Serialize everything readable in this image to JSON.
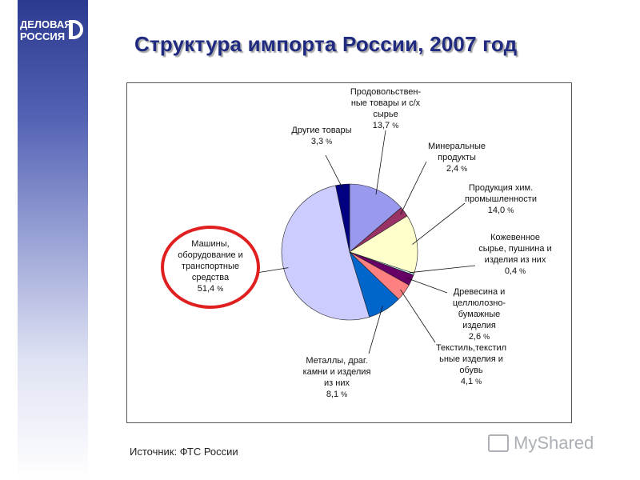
{
  "logo": {
    "line1": "ДЕЛОВАЯ",
    "line2": "РОССИЯ"
  },
  "title": "Структура импорта России, 2007 год",
  "source": "Источник: ФТС России",
  "watermark": "MyShared",
  "colors": {
    "brand": "#1f2a80",
    "highlight": "#e02020"
  },
  "chart_data": {
    "type": "pie",
    "title": "",
    "unit": "%",
    "slices": [
      {
        "label": [
          "Продовольствен-",
          "ные товары и с/х",
          "сырье"
        ],
        "value": 13.7,
        "value_text": "13,7",
        "color": "#9999ee"
      },
      {
        "label": [
          "Минеральные",
          "продукты"
        ],
        "value": 2.4,
        "value_text": "2,4",
        "color": "#993366"
      },
      {
        "label": [
          "Продукция хим.",
          "промышленности"
        ],
        "value": 14.0,
        "value_text": "14,0",
        "color": "#ffffcc"
      },
      {
        "label": [
          "Кожевенное",
          "сырье, пушнина и",
          "изделия из них"
        ],
        "value": 0.4,
        "value_text": "0,4",
        "color": "#ccffff"
      },
      {
        "label": [
          "Древесина и",
          "целлюлозно-",
          "бумажные",
          "изделия"
        ],
        "value": 2.6,
        "value_text": "2,6",
        "color": "#660066"
      },
      {
        "label": [
          "Текстиль,текстил",
          "ьные изделия и",
          "обувь"
        ],
        "value": 4.1,
        "value_text": "4,1",
        "color": "#ff8080"
      },
      {
        "label": [
          "Металлы, драг.",
          "камни и изделия",
          "из них"
        ],
        "value": 8.1,
        "value_text": "8,1",
        "color": "#0066cc"
      },
      {
        "label": [
          "Машины,",
          "оборудование и",
          "транспортные",
          "средства"
        ],
        "value": 51.4,
        "value_text": "51,4",
        "color": "#ccccff",
        "highlighted": true
      },
      {
        "label": [
          "Другие товары"
        ],
        "value": 3.3,
        "value_text": "3,3",
        "color": "#000080"
      }
    ]
  }
}
